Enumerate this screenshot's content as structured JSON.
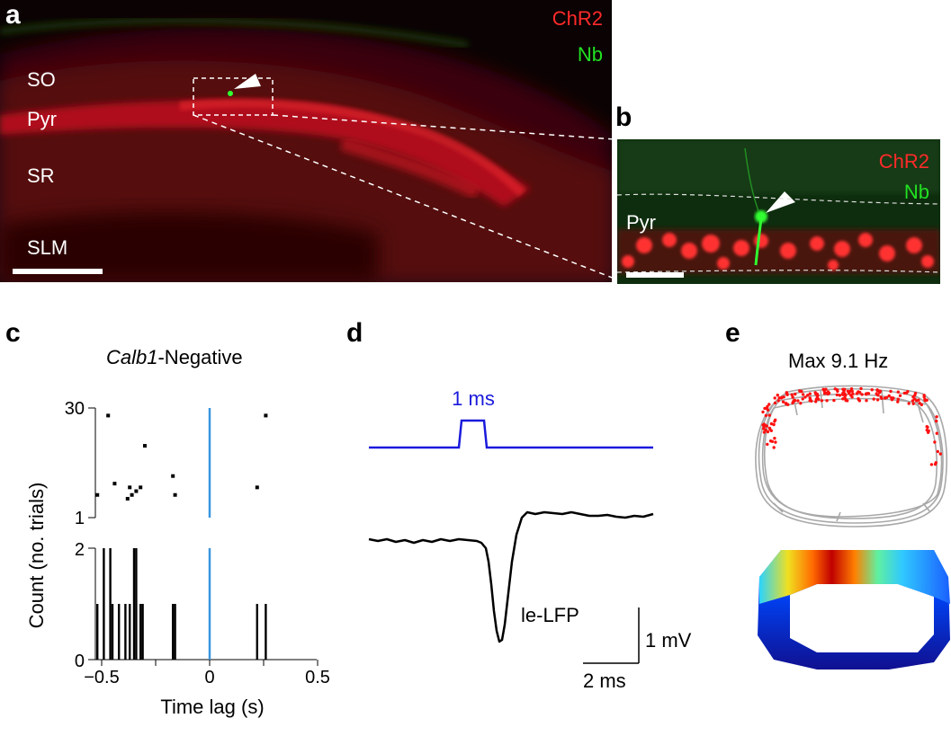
{
  "panels": {
    "a": {
      "label": "a",
      "channels": [
        "ChR2",
        "Nb"
      ],
      "layers": [
        "SO",
        "Pyr",
        "SR",
        "SLM"
      ],
      "colors": {
        "chr2": "#ff2a2a",
        "nb": "#22e022"
      }
    },
    "b": {
      "label": "b",
      "channels": [
        "ChR2",
        "Nb"
      ],
      "layer": "Pyr"
    },
    "c": {
      "label": "c",
      "title_italic": "Calb1",
      "title_rest": "-Negative",
      "ylabel": "Count (no. trials)",
      "xlabel": "Time lag (s)",
      "raster_ticks": [
        "30",
        "1"
      ],
      "hist_ticks": [
        "2",
        "0"
      ],
      "x_ticks": [
        "−0.5",
        "0",
        "0.5"
      ]
    },
    "d": {
      "label": "d",
      "pulse_label": "1 ms",
      "trace_label": "le-LFP",
      "scale_v": "1 mV",
      "scale_t": "2 ms",
      "pulse_color": "#1a1adc"
    },
    "e": {
      "label": "e",
      "title": "Max 9.1 Hz"
    }
  },
  "chart_data": [
    {
      "type": "scatter",
      "title": "Calb1-Negative",
      "ylabel": "Count (no. trials)",
      "xlabel": "Time lag (s)",
      "xlim": [
        -0.5,
        0.5
      ],
      "ylim": [
        1,
        30
      ],
      "stimulus_time": 0,
      "points": [
        {
          "x": -0.47,
          "y": 28
        },
        {
          "x": -0.52,
          "y": 7
        },
        {
          "x": -0.44,
          "y": 10
        },
        {
          "x": -0.37,
          "y": 9
        },
        {
          "x": -0.34,
          "y": 8
        },
        {
          "x": -0.36,
          "y": 7
        },
        {
          "x": -0.38,
          "y": 6
        },
        {
          "x": -0.32,
          "y": 9
        },
        {
          "x": -0.3,
          "y": 20
        },
        {
          "x": -0.17,
          "y": 12
        },
        {
          "x": -0.16,
          "y": 7
        },
        {
          "x": 0.22,
          "y": 9
        },
        {
          "x": 0.26,
          "y": 28
        }
      ]
    },
    {
      "type": "bar",
      "ylabel": "Count (no. trials)",
      "xlabel": "Time lag (s)",
      "xlim": [
        -0.5,
        0.5
      ],
      "ylim": [
        0,
        2
      ],
      "bin_width": 0.01,
      "bins": [
        {
          "x": -0.52,
          "value": 1
        },
        {
          "x": -0.49,
          "value": 2
        },
        {
          "x": -0.46,
          "value": 2
        },
        {
          "x": -0.45,
          "value": 1
        },
        {
          "x": -0.42,
          "value": 1
        },
        {
          "x": -0.39,
          "value": 1
        },
        {
          "x": -0.37,
          "value": 1
        },
        {
          "x": -0.35,
          "value": 2
        },
        {
          "x": -0.34,
          "value": 2
        },
        {
          "x": -0.32,
          "value": 1
        },
        {
          "x": -0.31,
          "value": 1
        },
        {
          "x": -0.17,
          "value": 1
        },
        {
          "x": -0.16,
          "value": 1
        },
        {
          "x": 0.22,
          "value": 1
        },
        {
          "x": 0.26,
          "value": 1
        }
      ]
    }
  ]
}
